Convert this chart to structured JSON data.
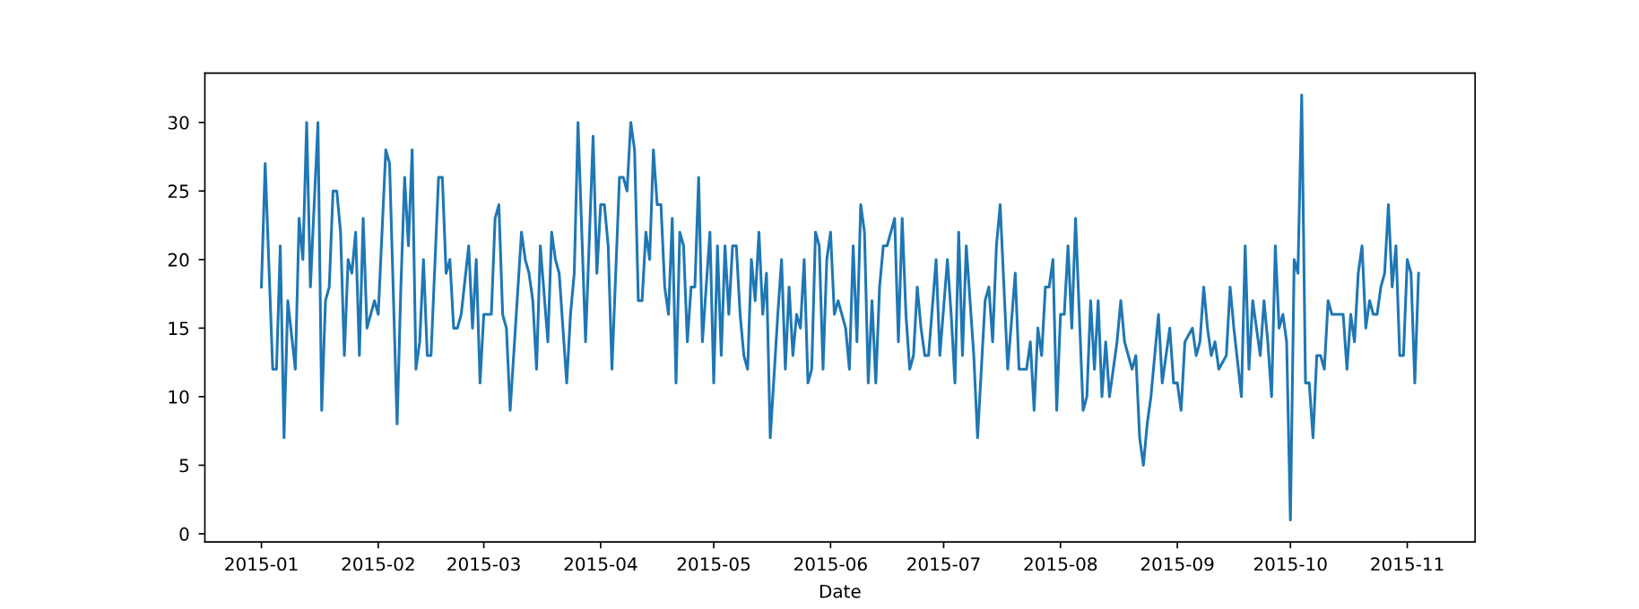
{
  "chart_data": {
    "type": "line",
    "xlabel": "Date",
    "x": [
      "2015-01-01",
      "2015-01-02",
      "2015-01-04",
      "2015-01-05",
      "2015-01-06",
      "2015-01-07",
      "2015-01-08",
      "2015-01-10",
      "2015-01-11",
      "2015-01-12",
      "2015-01-13",
      "2015-01-14",
      "2015-01-16",
      "2015-01-17",
      "2015-01-18",
      "2015-01-19",
      "2015-01-20",
      "2015-01-21",
      "2015-01-22",
      "2015-01-23",
      "2015-01-24",
      "2015-01-25",
      "2015-01-26",
      "2015-01-27",
      "2015-01-28",
      "2015-01-29",
      "2015-01-31",
      "2015-02-01",
      "2015-02-03",
      "2015-02-04",
      "2015-02-06",
      "2015-02-07",
      "2015-02-08",
      "2015-02-09",
      "2015-02-10",
      "2015-02-11",
      "2015-02-12",
      "2015-02-13",
      "2015-02-14",
      "2015-02-15",
      "2015-02-17",
      "2015-02-18",
      "2015-02-19",
      "2015-02-20",
      "2015-02-21",
      "2015-02-22",
      "2015-02-23",
      "2015-02-25",
      "2015-02-26",
      "2015-02-27",
      "2015-02-28",
      "2015-03-01",
      "2015-03-03",
      "2015-03-04",
      "2015-03-05",
      "2015-03-06",
      "2015-03-07",
      "2015-03-08",
      "2015-03-11",
      "2015-03-12",
      "2015-03-13",
      "2015-03-14",
      "2015-03-15",
      "2015-03-16",
      "2015-03-18",
      "2015-03-19",
      "2015-03-20",
      "2015-03-21",
      "2015-03-23",
      "2015-03-24",
      "2015-03-25",
      "2015-03-26",
      "2015-03-28",
      "2015-03-30",
      "2015-03-31",
      "2015-04-01",
      "2015-04-02",
      "2015-04-03",
      "2015-04-04",
      "2015-04-06",
      "2015-04-07",
      "2015-04-08",
      "2015-04-09",
      "2015-04-10",
      "2015-04-11",
      "2015-04-12",
      "2015-04-13",
      "2015-04-14",
      "2015-04-15",
      "2015-04-16",
      "2015-04-17",
      "2015-04-18",
      "2015-04-19",
      "2015-04-20",
      "2015-04-21",
      "2015-04-22",
      "2015-04-23",
      "2015-04-24",
      "2015-04-25",
      "2015-04-26",
      "2015-04-27",
      "2015-04-28",
      "2015-04-30",
      "2015-05-01",
      "2015-05-02",
      "2015-05-03",
      "2015-05-04",
      "2015-05-05",
      "2015-05-06",
      "2015-05-07",
      "2015-05-08",
      "2015-05-09",
      "2015-05-10",
      "2015-05-11",
      "2015-05-12",
      "2015-05-13",
      "2015-05-14",
      "2015-05-15",
      "2015-05-16",
      "2015-05-18",
      "2015-05-19",
      "2015-05-20",
      "2015-05-21",
      "2015-05-22",
      "2015-05-23",
      "2015-05-24",
      "2015-05-25",
      "2015-05-26",
      "2015-05-27",
      "2015-05-28",
      "2015-05-29",
      "2015-05-30",
      "2015-05-31",
      "2015-06-01",
      "2015-06-02",
      "2015-06-03",
      "2015-06-04",
      "2015-06-05",
      "2015-06-06",
      "2015-06-07",
      "2015-06-08",
      "2015-06-09",
      "2015-06-10",
      "2015-06-11",
      "2015-06-12",
      "2015-06-13",
      "2015-06-14",
      "2015-06-15",
      "2015-06-16",
      "2015-06-17",
      "2015-06-18",
      "2015-06-19",
      "2015-06-20",
      "2015-06-21",
      "2015-06-22",
      "2015-06-23",
      "2015-06-24",
      "2015-06-25",
      "2015-06-26",
      "2015-06-27",
      "2015-06-29",
      "2015-06-30",
      "2015-07-02",
      "2015-07-03",
      "2015-07-04",
      "2015-07-05",
      "2015-07-06",
      "2015-07-07",
      "2015-07-09",
      "2015-07-10",
      "2015-07-12",
      "2015-07-13",
      "2015-07-14",
      "2015-07-15",
      "2015-07-16",
      "2015-07-18",
      "2015-07-20",
      "2015-07-21",
      "2015-07-23",
      "2015-07-24",
      "2015-07-25",
      "2015-07-26",
      "2015-07-27",
      "2015-07-28",
      "2015-07-29",
      "2015-07-30",
      "2015-07-31",
      "2015-08-01",
      "2015-08-02",
      "2015-08-03",
      "2015-08-04",
      "2015-08-05",
      "2015-08-07",
      "2015-08-08",
      "2015-08-09",
      "2015-08-10",
      "2015-08-11",
      "2015-08-12",
      "2015-08-13",
      "2015-08-14",
      "2015-08-15",
      "2015-08-16",
      "2015-08-17",
      "2015-08-18",
      "2015-08-19",
      "2015-08-20",
      "2015-08-21",
      "2015-08-22",
      "2015-08-23",
      "2015-08-24",
      "2015-08-25",
      "2015-08-26",
      "2015-08-27",
      "2015-08-28",
      "2015-08-30",
      "2015-08-31",
      "2015-09-01",
      "2015-09-02",
      "2015-09-03",
      "2015-09-05",
      "2015-09-06",
      "2015-09-07",
      "2015-09-08",
      "2015-09-09",
      "2015-09-10",
      "2015-09-11",
      "2015-09-12",
      "2015-09-14",
      "2015-09-15",
      "2015-09-16",
      "2015-09-18",
      "2015-09-19",
      "2015-09-20",
      "2015-09-21",
      "2015-09-22",
      "2015-09-23",
      "2015-09-24",
      "2015-09-25",
      "2015-09-26",
      "2015-09-27",
      "2015-09-28",
      "2015-09-29",
      "2015-09-30",
      "2015-10-01",
      "2015-10-02",
      "2015-10-03",
      "2015-10-04",
      "2015-10-05",
      "2015-10-06",
      "2015-10-07",
      "2015-10-08",
      "2015-10-09",
      "2015-10-10",
      "2015-10-11",
      "2015-10-12",
      "2015-10-13",
      "2015-10-15",
      "2015-10-16",
      "2015-10-17",
      "2015-10-18",
      "2015-10-19",
      "2015-10-20",
      "2015-10-21",
      "2015-10-22",
      "2015-10-23",
      "2015-10-24",
      "2015-10-25",
      "2015-10-26",
      "2015-10-27",
      "2015-10-28",
      "2015-10-29",
      "2015-10-30",
      "2015-10-31",
      "2015-11-01",
      "2015-11-02",
      "2015-11-03",
      "2015-11-04"
    ],
    "series": [
      {
        "color": "#1f77b4",
        "values": [
          18,
          27,
          12,
          12,
          21,
          7,
          17,
          12,
          23,
          20,
          30,
          18,
          30,
          9,
          17,
          18,
          25,
          25,
          22,
          13,
          20,
          19,
          22,
          13,
          23,
          15,
          17,
          16,
          28,
          27,
          8,
          18,
          26,
          21,
          28,
          12,
          14,
          20,
          13,
          13,
          26,
          26,
          19,
          20,
          15,
          15,
          16,
          21,
          15,
          20,
          11,
          16,
          16,
          23,
          24,
          16,
          15,
          9,
          22,
          20,
          19,
          17,
          12,
          21,
          14,
          22,
          20,
          19,
          11,
          16,
          19,
          30,
          14,
          29,
          19,
          24,
          24,
          21,
          12,
          26,
          26,
          25,
          30,
          28,
          17,
          17,
          22,
          20,
          28,
          24,
          24,
          18,
          16,
          23,
          11,
          22,
          21,
          14,
          18,
          18,
          26,
          14,
          22,
          11,
          21,
          13,
          21,
          16,
          21,
          21,
          16,
          13,
          12,
          20,
          17,
          22,
          16,
          19,
          7,
          16,
          20,
          12,
          18,
          13,
          16,
          15,
          20,
          11,
          12,
          22,
          21,
          12,
          20,
          22,
          16,
          17,
          16,
          15,
          12,
          21,
          14,
          24,
          22,
          11,
          17,
          11,
          18,
          21,
          21,
          22,
          23,
          14,
          23,
          16,
          12,
          13,
          18,
          15,
          13,
          13,
          20,
          13,
          20,
          16,
          11,
          22,
          13,
          21,
          13,
          7,
          17,
          18,
          14,
          21,
          24,
          12,
          19,
          12,
          12,
          14,
          9,
          15,
          13,
          18,
          18,
          20,
          9,
          16,
          16,
          21,
          15,
          23,
          9,
          10,
          17,
          12,
          17,
          10,
          14,
          10,
          12,
          14,
          17,
          14,
          13,
          12,
          13,
          7,
          5,
          8,
          10,
          13,
          16,
          11,
          15,
          11,
          11,
          9,
          14,
          15,
          13,
          14,
          18,
          15,
          13,
          14,
          12,
          13,
          18,
          15,
          10,
          21,
          12,
          17,
          15,
          13,
          17,
          14,
          10,
          21,
          15,
          16,
          14,
          1,
          20,
          19,
          32,
          11,
          11,
          7,
          13,
          13,
          12,
          17,
          16,
          16,
          16,
          12,
          16,
          14,
          19,
          21,
          15,
          17,
          16,
          16,
          18,
          19,
          24,
          18,
          21,
          13,
          13,
          20,
          19,
          11,
          19
        ]
      }
    ],
    "xlim": [
      "2014-12-17",
      "2015-11-19"
    ],
    "xticks": [
      {
        "value": "2015-01-01",
        "label": "2015-01"
      },
      {
        "value": "2015-02-01",
        "label": "2015-02"
      },
      {
        "value": "2015-03-01",
        "label": "2015-03"
      },
      {
        "value": "2015-04-01",
        "label": "2015-04"
      },
      {
        "value": "2015-05-01",
        "label": "2015-05"
      },
      {
        "value": "2015-06-01",
        "label": "2015-06"
      },
      {
        "value": "2015-07-01",
        "label": "2015-07"
      },
      {
        "value": "2015-08-01",
        "label": "2015-08"
      },
      {
        "value": "2015-09-01",
        "label": "2015-09"
      },
      {
        "value": "2015-10-01",
        "label": "2015-10"
      },
      {
        "value": "2015-11-01",
        "label": "2015-11"
      }
    ],
    "ylim": [
      -0.6,
      33.6
    ],
    "yticks": [
      0,
      5,
      10,
      15,
      20,
      25,
      30
    ],
    "grid": false,
    "marker": "none",
    "line_style": "solid"
  }
}
